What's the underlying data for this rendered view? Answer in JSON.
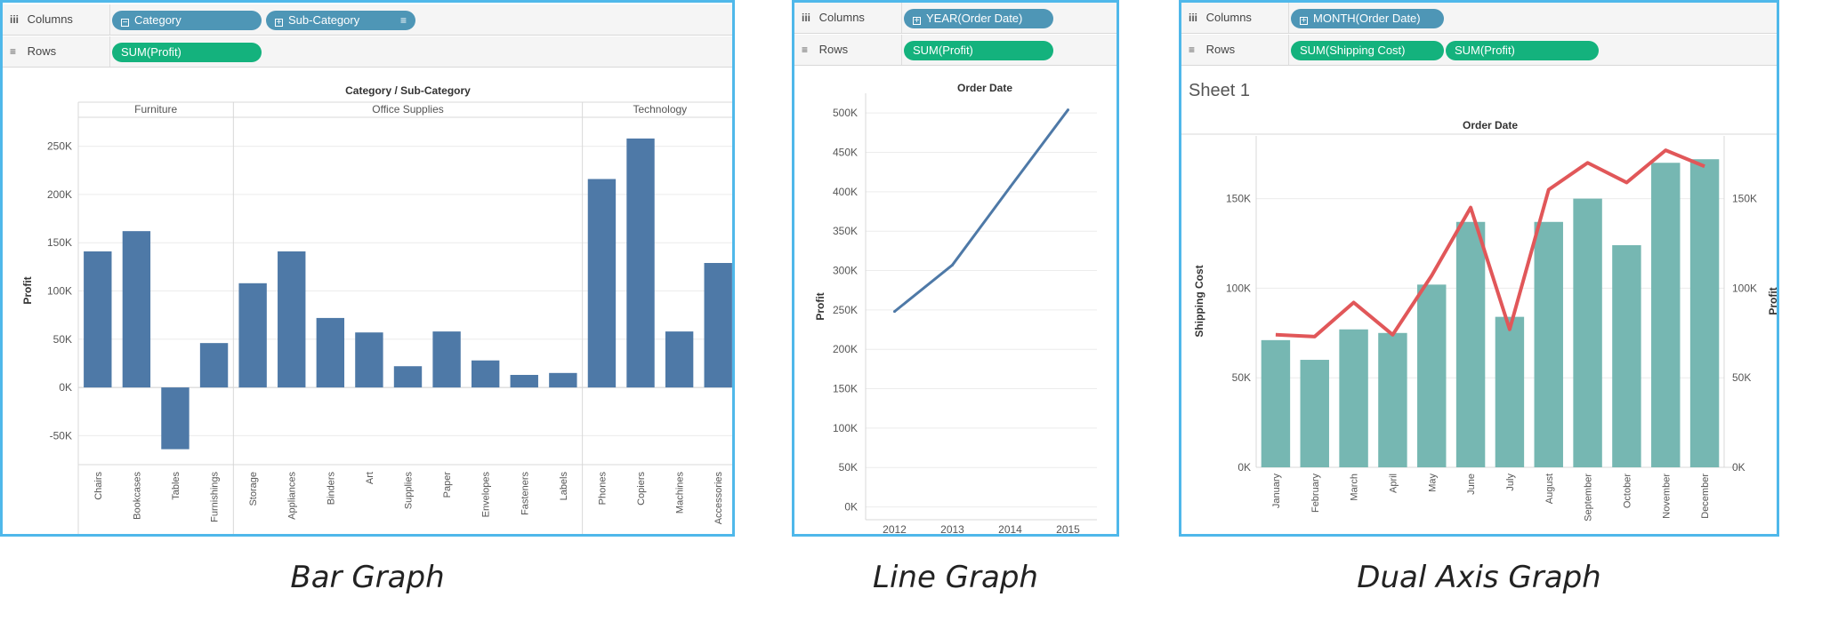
{
  "captions": [
    "Bar Graph",
    "Line Graph",
    "Dual Axis Graph"
  ],
  "colors": {
    "bar": "#4e79a7",
    "line": "#4e79a7",
    "dual_bar": "#76b7b2",
    "dual_line": "#e15759",
    "pill_blue": "#4e96b6",
    "pill_green": "#14b27d",
    "frame": "#4fb8ea"
  },
  "panels": [
    {
      "columns_label": "Columns",
      "rows_label": "Rows",
      "column_pills": [
        "Category",
        "Sub-Category"
      ],
      "row_pills": [
        "SUM(Profit)"
      ]
    },
    {
      "columns_label": "Columns",
      "rows_label": "Rows",
      "column_pills": [
        "YEAR(Order Date)"
      ],
      "row_pills": [
        "SUM(Profit)"
      ]
    },
    {
      "columns_label": "Columns",
      "rows_label": "Rows",
      "column_pills": [
        "MONTH(Order Date)"
      ],
      "row_pills": [
        "SUM(Shipping Cost)",
        "SUM(Profit)"
      ],
      "sheet_title": "Sheet 1"
    }
  ],
  "chart_data": [
    {
      "type": "bar",
      "title": "Category / Sub-Category",
      "ylabel": "Profit",
      "ylim": [
        -80000,
        280000
      ],
      "yticks": [
        -50000,
        0,
        50000,
        100000,
        150000,
        200000,
        250000
      ],
      "ytick_labels": [
        "-50K",
        "0K",
        "50K",
        "100K",
        "150K",
        "200K",
        "250K"
      ],
      "groups": [
        {
          "name": "Furniture",
          "categories": [
            "Chairs",
            "Bookcases",
            "Tables",
            "Furnishings"
          ],
          "values": [
            141000,
            162000,
            -64000,
            46000
          ]
        },
        {
          "name": "Office Supplies",
          "categories": [
            "Storage",
            "Appliances",
            "Binders",
            "Art",
            "Supplies",
            "Paper",
            "Envelopes",
            "Fasteners",
            "Labels"
          ],
          "values": [
            108000,
            141000,
            72000,
            57000,
            22000,
            58000,
            28000,
            13000,
            15000
          ]
        },
        {
          "name": "Technology",
          "categories": [
            "Phones",
            "Copiers",
            "Machines",
            "Accessories"
          ],
          "values": [
            216000,
            258000,
            58000,
            129000
          ]
        }
      ]
    },
    {
      "type": "line",
      "title": "Order Date",
      "ylabel": "Profit",
      "x": [
        "2012",
        "2013",
        "2014",
        "2015"
      ],
      "values": [
        248000,
        307000,
        406000,
        504000
      ],
      "ylim": [
        -5000,
        525000
      ],
      "yticks": [
        0,
        50000,
        100000,
        150000,
        200000,
        250000,
        300000,
        350000,
        400000,
        450000,
        500000
      ],
      "ytick_labels": [
        "0K",
        "50K",
        "100K",
        "150K",
        "200K",
        "250K",
        "300K",
        "350K",
        "400K",
        "450K",
        "500K"
      ]
    },
    {
      "type": "bar",
      "title": "Order Date",
      "categories": [
        "January",
        "February",
        "March",
        "April",
        "May",
        "June",
        "July",
        "August",
        "September",
        "October",
        "November",
        "December"
      ],
      "series": [
        {
          "name": "Shipping Cost",
          "type": "bar",
          "axis": "left",
          "values": [
            71000,
            60000,
            77000,
            75000,
            102000,
            137000,
            84000,
            137000,
            150000,
            124000,
            170000,
            172000
          ]
        },
        {
          "name": "Profit",
          "type": "line",
          "axis": "right",
          "values": [
            74000,
            73000,
            92000,
            74000,
            107000,
            145000,
            77000,
            155000,
            170000,
            159000,
            177000,
            168000
          ]
        }
      ],
      "ylabel_left": "Shipping Cost",
      "ylabel_right": "Profit",
      "ylim": [
        0,
        185000
      ],
      "yticks": [
        0,
        50000,
        100000,
        150000
      ],
      "ytick_labels": [
        "0K",
        "50K",
        "100K",
        "150K"
      ]
    }
  ]
}
